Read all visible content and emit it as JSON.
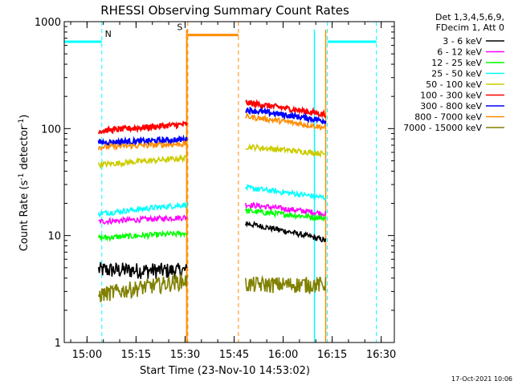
{
  "chart_data": {
    "type": "line",
    "title": "RHESSI Observing Summary Count Rates",
    "xlabel": "Start Time (23-Nov-10 14:53:02)",
    "ylabel_main": "Count Rate (s",
    "ylabel_sup1": "-1",
    "ylabel_mid": " detector",
    "ylabel_sup2": "-1",
    "ylabel_end": ")",
    "yscale": "log",
    "ylim": [
      1,
      1000
    ],
    "xlim_minutes": [
      0,
      101
    ],
    "x_ticks": [
      {
        "label": "15:00",
        "min": 6.97
      },
      {
        "label": "15:15",
        "min": 21.97
      },
      {
        "label": "15:30",
        "min": 36.97
      },
      {
        "label": "15:45",
        "min": 51.97
      },
      {
        "label": "16:00",
        "min": 66.97
      },
      {
        "label": "16:15",
        "min": 81.97
      },
      {
        "label": "16:30",
        "min": 96.97
      }
    ],
    "y_ticks": [
      {
        "label": "1",
        "value": 1
      },
      {
        "label": "10",
        "value": 10
      },
      {
        "label": "100",
        "value": 100
      },
      {
        "label": "1000",
        "value": 1000
      }
    ],
    "legend_header": [
      "Det 1,3,4,5,6,9,",
      "FDecim 1, Att 0"
    ],
    "series": [
      {
        "name": "3 - 6 keV",
        "color": "#000000",
        "seg1": [
          4.8,
          4.7
        ],
        "seg2": [
          13.0,
          9.0
        ]
      },
      {
        "name": "6 - 12 keV",
        "color": "#ff00ff",
        "seg1": [
          13.5,
          14.8
        ],
        "seg2": [
          19.5,
          16.0
        ]
      },
      {
        "name": "12 - 25 keV",
        "color": "#00ff00",
        "seg1": [
          9.5,
          10.5
        ],
        "seg2": [
          17.0,
          14.5
        ]
      },
      {
        "name": "25 - 50 keV",
        "color": "#00ffff",
        "seg1": [
          16.0,
          19.5
        ],
        "seg2": [
          28.0,
          22.5
        ]
      },
      {
        "name": "50 - 100 keV",
        "color": "#cccc00",
        "seg1": [
          46.0,
          53.0
        ],
        "seg2": [
          68.0,
          58.0
        ]
      },
      {
        "name": "100 - 300 keV",
        "color": "#ff0000",
        "seg1": [
          95.0,
          110.0
        ],
        "seg2": [
          175.0,
          135.0
        ]
      },
      {
        "name": "300 - 800 keV",
        "color": "#0000ff",
        "seg1": [
          74.0,
          79.0
        ],
        "seg2": [
          150.0,
          118.0
        ]
      },
      {
        "name": "800 - 7000 keV",
        "color": "#ff8c00",
        "seg1": [
          67.0,
          72.0
        ],
        "seg2": [
          130.0,
          102.0
        ]
      },
      {
        "name": "7000 - 15000 keV",
        "color": "#808000",
        "seg1": [
          2.8,
          3.8
        ],
        "seg2": [
          3.5,
          3.5
        ]
      }
    ],
    "data_segments_min": [
      [
        10.5,
        37.5
      ],
      [
        55.5,
        80.0
      ]
    ],
    "flags": [
      {
        "label": "N",
        "kind": "night",
        "color": "#00ffff",
        "segments_min": [
          [
            0,
            11.5
          ],
          [
            80.5,
            95.5
          ]
        ],
        "level": 650
      },
      {
        "label": "S",
        "kind": "saa",
        "color": "#ff8c00",
        "segments_min": [
          [
            37.8,
            53.3
          ]
        ],
        "level": 750
      }
    ],
    "timestamp": "17-Oct-2021 10:06"
  }
}
